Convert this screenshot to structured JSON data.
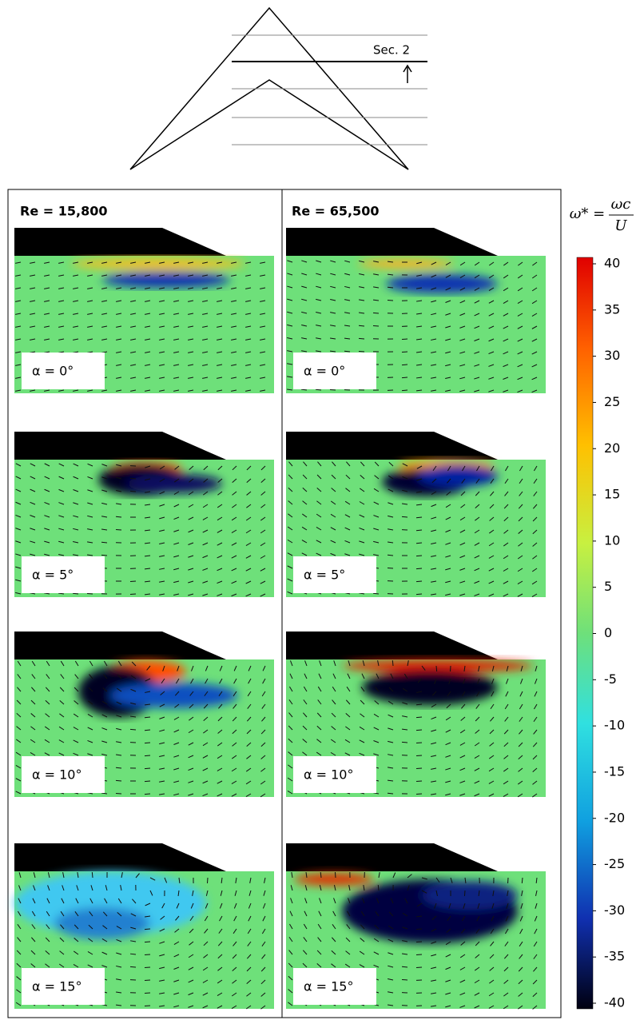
{
  "diagram": {
    "section_label": "Sec. 2"
  },
  "columns": [
    {
      "header": "Re = 15,800",
      "panels": [
        "α = 0°",
        "α = 5°",
        "α = 10°",
        "α = 15°"
      ]
    },
    {
      "header": "Re = 65,500",
      "panels": [
        "α = 0°",
        "α = 5°",
        "α = 10°",
        "α = 15°"
      ]
    }
  ],
  "colorbar": {
    "formula": {
      "lhs": "ω* =",
      "numerator": "ωc",
      "denominator": "U"
    },
    "range": [
      -40,
      40
    ],
    "ticks": [
      40,
      35,
      30,
      25,
      20,
      15,
      10,
      5,
      0,
      -5,
      -10,
      -15,
      -20,
      -25,
      -30,
      -35,
      -40
    ]
  }
}
